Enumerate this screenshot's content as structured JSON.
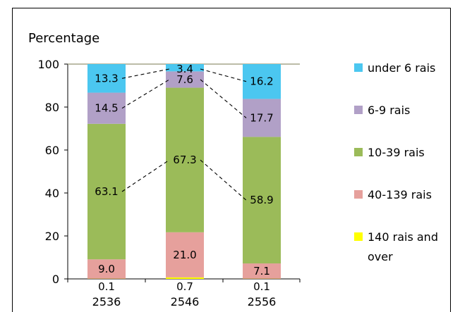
{
  "chart_data": {
    "type": "bar",
    "stacked": true,
    "ylabel": "Percentage",
    "ylim": [
      0,
      100
    ],
    "yticks": [
      0,
      20,
      40,
      60,
      80,
      100
    ],
    "categories": [
      "2536",
      "2546",
      "2556"
    ],
    "series": [
      {
        "name": "140 rais and over",
        "color": "#ffff00",
        "values": [
          0.1,
          0.7,
          0.1
        ],
        "labels": [
          "0.1",
          "0.7",
          "0.1"
        ]
      },
      {
        "name": "40-139 rais",
        "color": "#e6a09c",
        "values": [
          9.0,
          21.0,
          7.1
        ],
        "labels": [
          "9.0",
          "21.0",
          "7.1"
        ]
      },
      {
        "name": "10-39 rais",
        "color": "#9bbb59",
        "values": [
          63.1,
          67.3,
          58.9
        ],
        "labels": [
          "63.1",
          "67.3",
          "58.9"
        ]
      },
      {
        "name": "6-9 rais",
        "color": "#b1a0c7",
        "values": [
          14.5,
          7.6,
          17.7
        ],
        "labels": [
          "14.5",
          "7.6",
          "17.7"
        ]
      },
      {
        "name": "under 6 rais",
        "color": "#4bc7f0",
        "values": [
          13.3,
          3.4,
          16.2
        ],
        "labels": [
          "13.3",
          "3.4",
          "16.2"
        ]
      }
    ],
    "legend": {
      "position": "right",
      "entries": [
        "under 6 rais",
        "6-9 rais",
        "10-39 rais",
        "40-139 rais",
        "140 rais and over"
      ]
    },
    "connector_lines": true
  }
}
